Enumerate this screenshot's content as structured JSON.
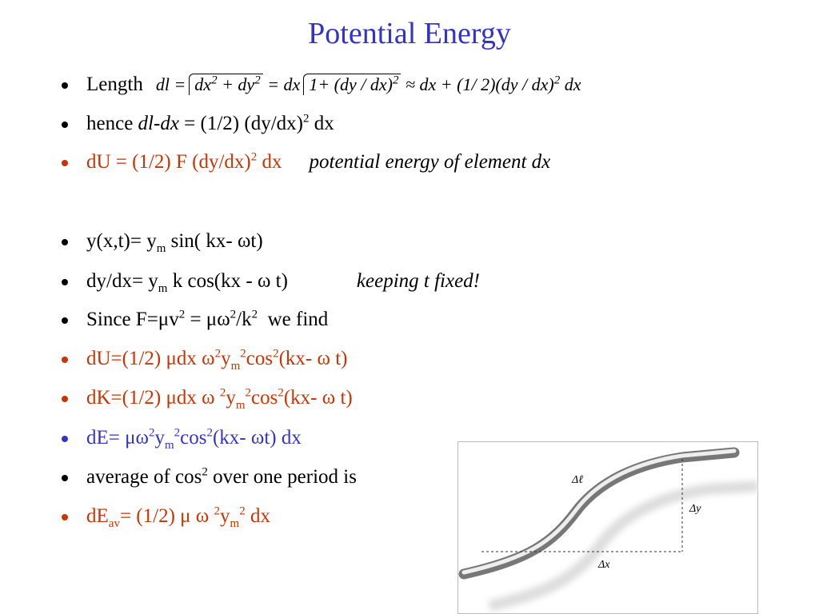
{
  "slide": {
    "title": "Potential Energy",
    "bullets": [
      {
        "parts": [
          "Length",
          "dl =",
          "dx",
          "2",
          "+ dy",
          "2",
          "= dx",
          "1+ (dy / dx)",
          "2",
          "≈ dx + (1/ 2)(dy / dx)",
          "2",
          "dx"
        ]
      },
      {
        "parts": [
          "hence ",
          "dl-dx",
          " = (1/2) (dy/dx)",
          "2",
          " dx"
        ]
      },
      {
        "parts": [
          "dU = (1/2) F (dy/dx)",
          "2",
          " dx",
          "potential energy of element dx"
        ]
      },
      {
        "parts": [
          "y(x,t)= y",
          "m",
          " sin( kx- ωt)"
        ]
      },
      {
        "parts": [
          "dy/dx= y",
          "m",
          " k cos(kx - ω t)",
          "keeping t fixed!"
        ]
      },
      {
        "parts": [
          "Since F=μv",
          "2",
          " = μω",
          "2",
          "/k",
          "2",
          "  we find"
        ]
      },
      {
        "parts": [
          "dU=(1/2) μdx ω",
          "2",
          "y",
          "m",
          "2",
          "cos",
          "2",
          "(kx- ω t)"
        ]
      },
      {
        "parts": [
          "dK=(1/2) μdx ω ",
          "2",
          "y",
          "m",
          "2",
          "cos",
          "2",
          "(kx- ω t)"
        ]
      },
      {
        "parts": [
          "dE= μω",
          "2",
          "y",
          "m",
          "2",
          "cos",
          "2",
          "(kx- ωt) dx"
        ]
      },
      {
        "parts": [
          "average of cos",
          "2",
          " over one period is"
        ]
      },
      {
        "parts": [
          "dE",
          "av",
          "= (1/2) μ ω ",
          "2",
          "y",
          "m",
          "2",
          " dx"
        ]
      }
    ],
    "figure": {
      "labels": [
        "Δℓ",
        "Δy",
        "Δx"
      ]
    }
  }
}
